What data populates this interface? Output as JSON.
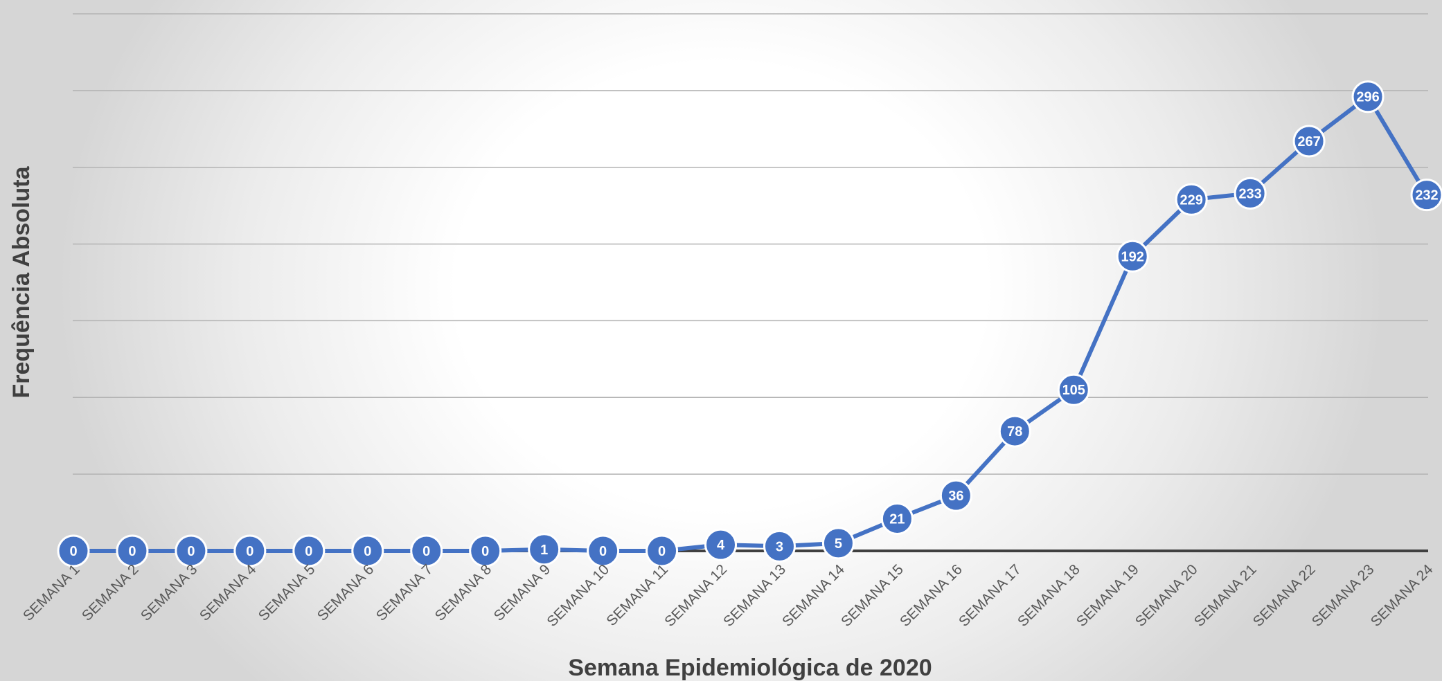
{
  "chart_data": {
    "type": "line",
    "title": "",
    "xlabel": "Semana Epidemiológica de 2020",
    "ylabel": "Frequência Absoluta",
    "categories": [
      "SEMANA 1",
      "SEMANA 2",
      "SEMANA 3",
      "SEMANA 4",
      "SEMANA 5",
      "SEMANA 6",
      "SEMANA 7",
      "SEMANA 8",
      "SEMANA 9",
      "SEMANA 10",
      "SEMANA 11",
      "SEMANA 12",
      "SEMANA 13",
      "SEMANA 14",
      "SEMANA 15",
      "SEMANA 16",
      "SEMANA 17",
      "SEMANA 18",
      "SEMANA 19",
      "SEMANA 20",
      "SEMANA 21",
      "SEMANA 22",
      "SEMANA 23",
      "SEMANA 24"
    ],
    "series": [
      {
        "values": [
          0,
          0,
          0,
          0,
          0,
          0,
          0,
          0,
          1,
          0,
          0,
          4,
          3,
          5,
          21,
          36,
          78,
          105,
          192,
          229,
          233,
          267,
          296,
          232
        ]
      }
    ],
    "ylim": [
      0,
      350
    ],
    "y_gridline_step": 50,
    "grid": true,
    "legend": "none",
    "data_labels": true,
    "y_tick_labels_shown": false,
    "color": "#4472c4",
    "gridline_color": "#b3b3b3",
    "baseline_color": "#404040"
  }
}
